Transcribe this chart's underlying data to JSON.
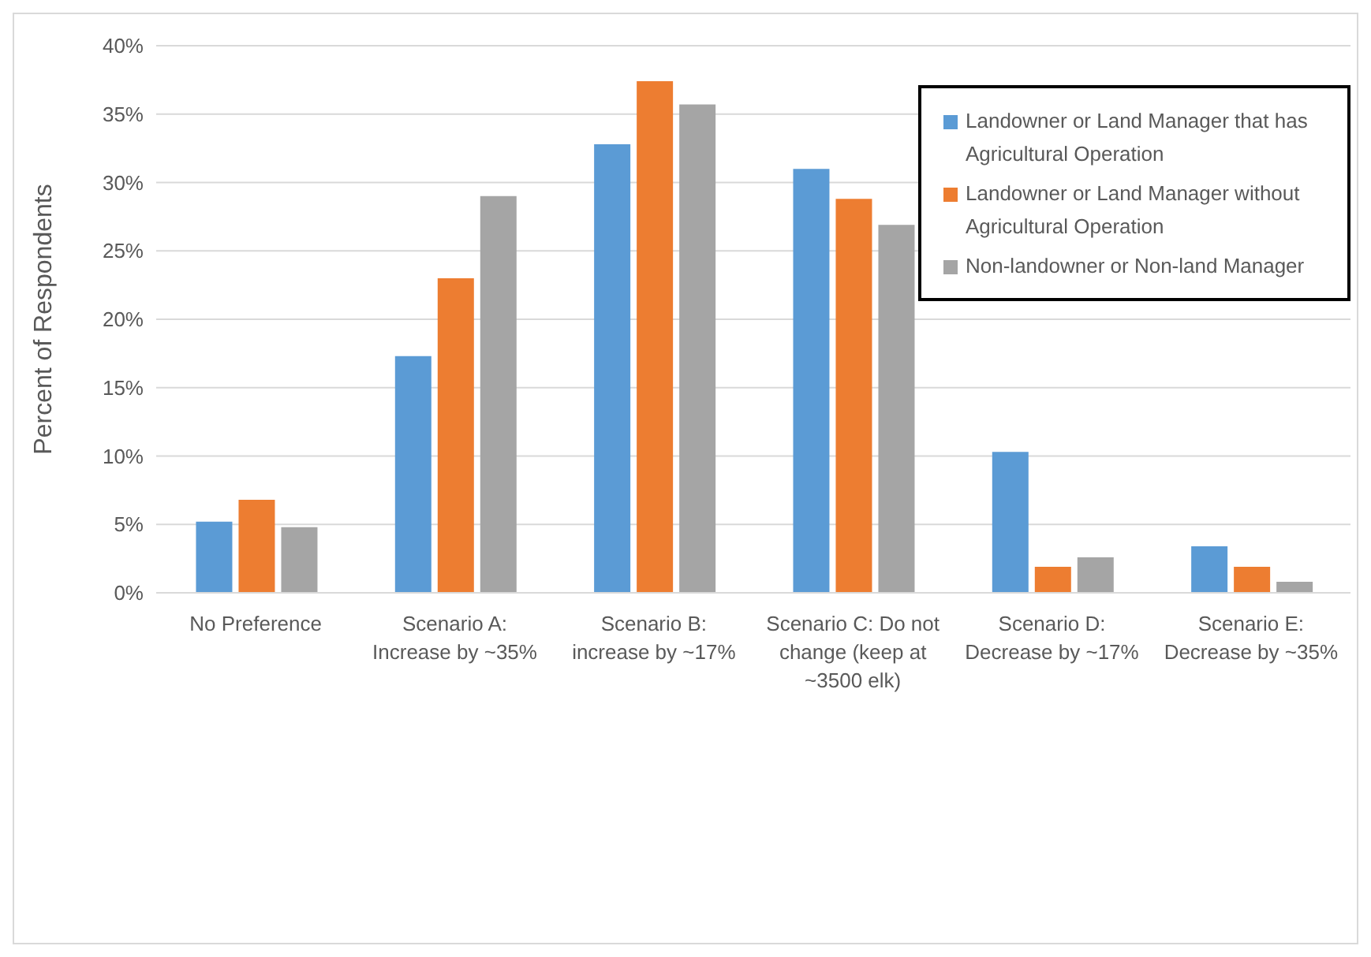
{
  "chart_data": {
    "type": "bar",
    "ylabel": "Percent of Respondents",
    "categories": [
      "No Preference",
      "Scenario A: Increase by ~35%",
      "Scenario B: increase by ~17%",
      "Scenario C: Do not change (keep at ~3500 elk)",
      "Scenario D: Decrease by ~17%",
      "Scenario E: Decrease by ~35%"
    ],
    "series": [
      {
        "name": "Landowner or Land Manager that has Agricultural Operation",
        "color": "#5b9bd5",
        "values": [
          5.2,
          17.3,
          32.8,
          31.0,
          10.3,
          3.4
        ]
      },
      {
        "name": "Landowner or Land Manager without Agricultural Operation",
        "color": "#ed7d31",
        "values": [
          6.8,
          23.0,
          37.4,
          28.8,
          1.9,
          1.9
        ]
      },
      {
        "name": "Non-landowner or Non-land Manager",
        "color": "#a5a5a5",
        "values": [
          4.8,
          29.0,
          35.7,
          26.9,
          2.6,
          0.8
        ]
      }
    ],
    "ylim": [
      0,
      40
    ],
    "yticks": [
      {
        "value": 0,
        "label": "0%"
      },
      {
        "value": 5,
        "label": "5%"
      },
      {
        "value": 10,
        "label": "10%"
      },
      {
        "value": 15,
        "label": "15%"
      },
      {
        "value": 20,
        "label": "20%"
      },
      {
        "value": 25,
        "label": "25%"
      },
      {
        "value": 30,
        "label": "30%"
      },
      {
        "value": 35,
        "label": "35%"
      },
      {
        "value": 40,
        "label": "40%"
      }
    ],
    "grid": "y",
    "legend": "top right"
  }
}
